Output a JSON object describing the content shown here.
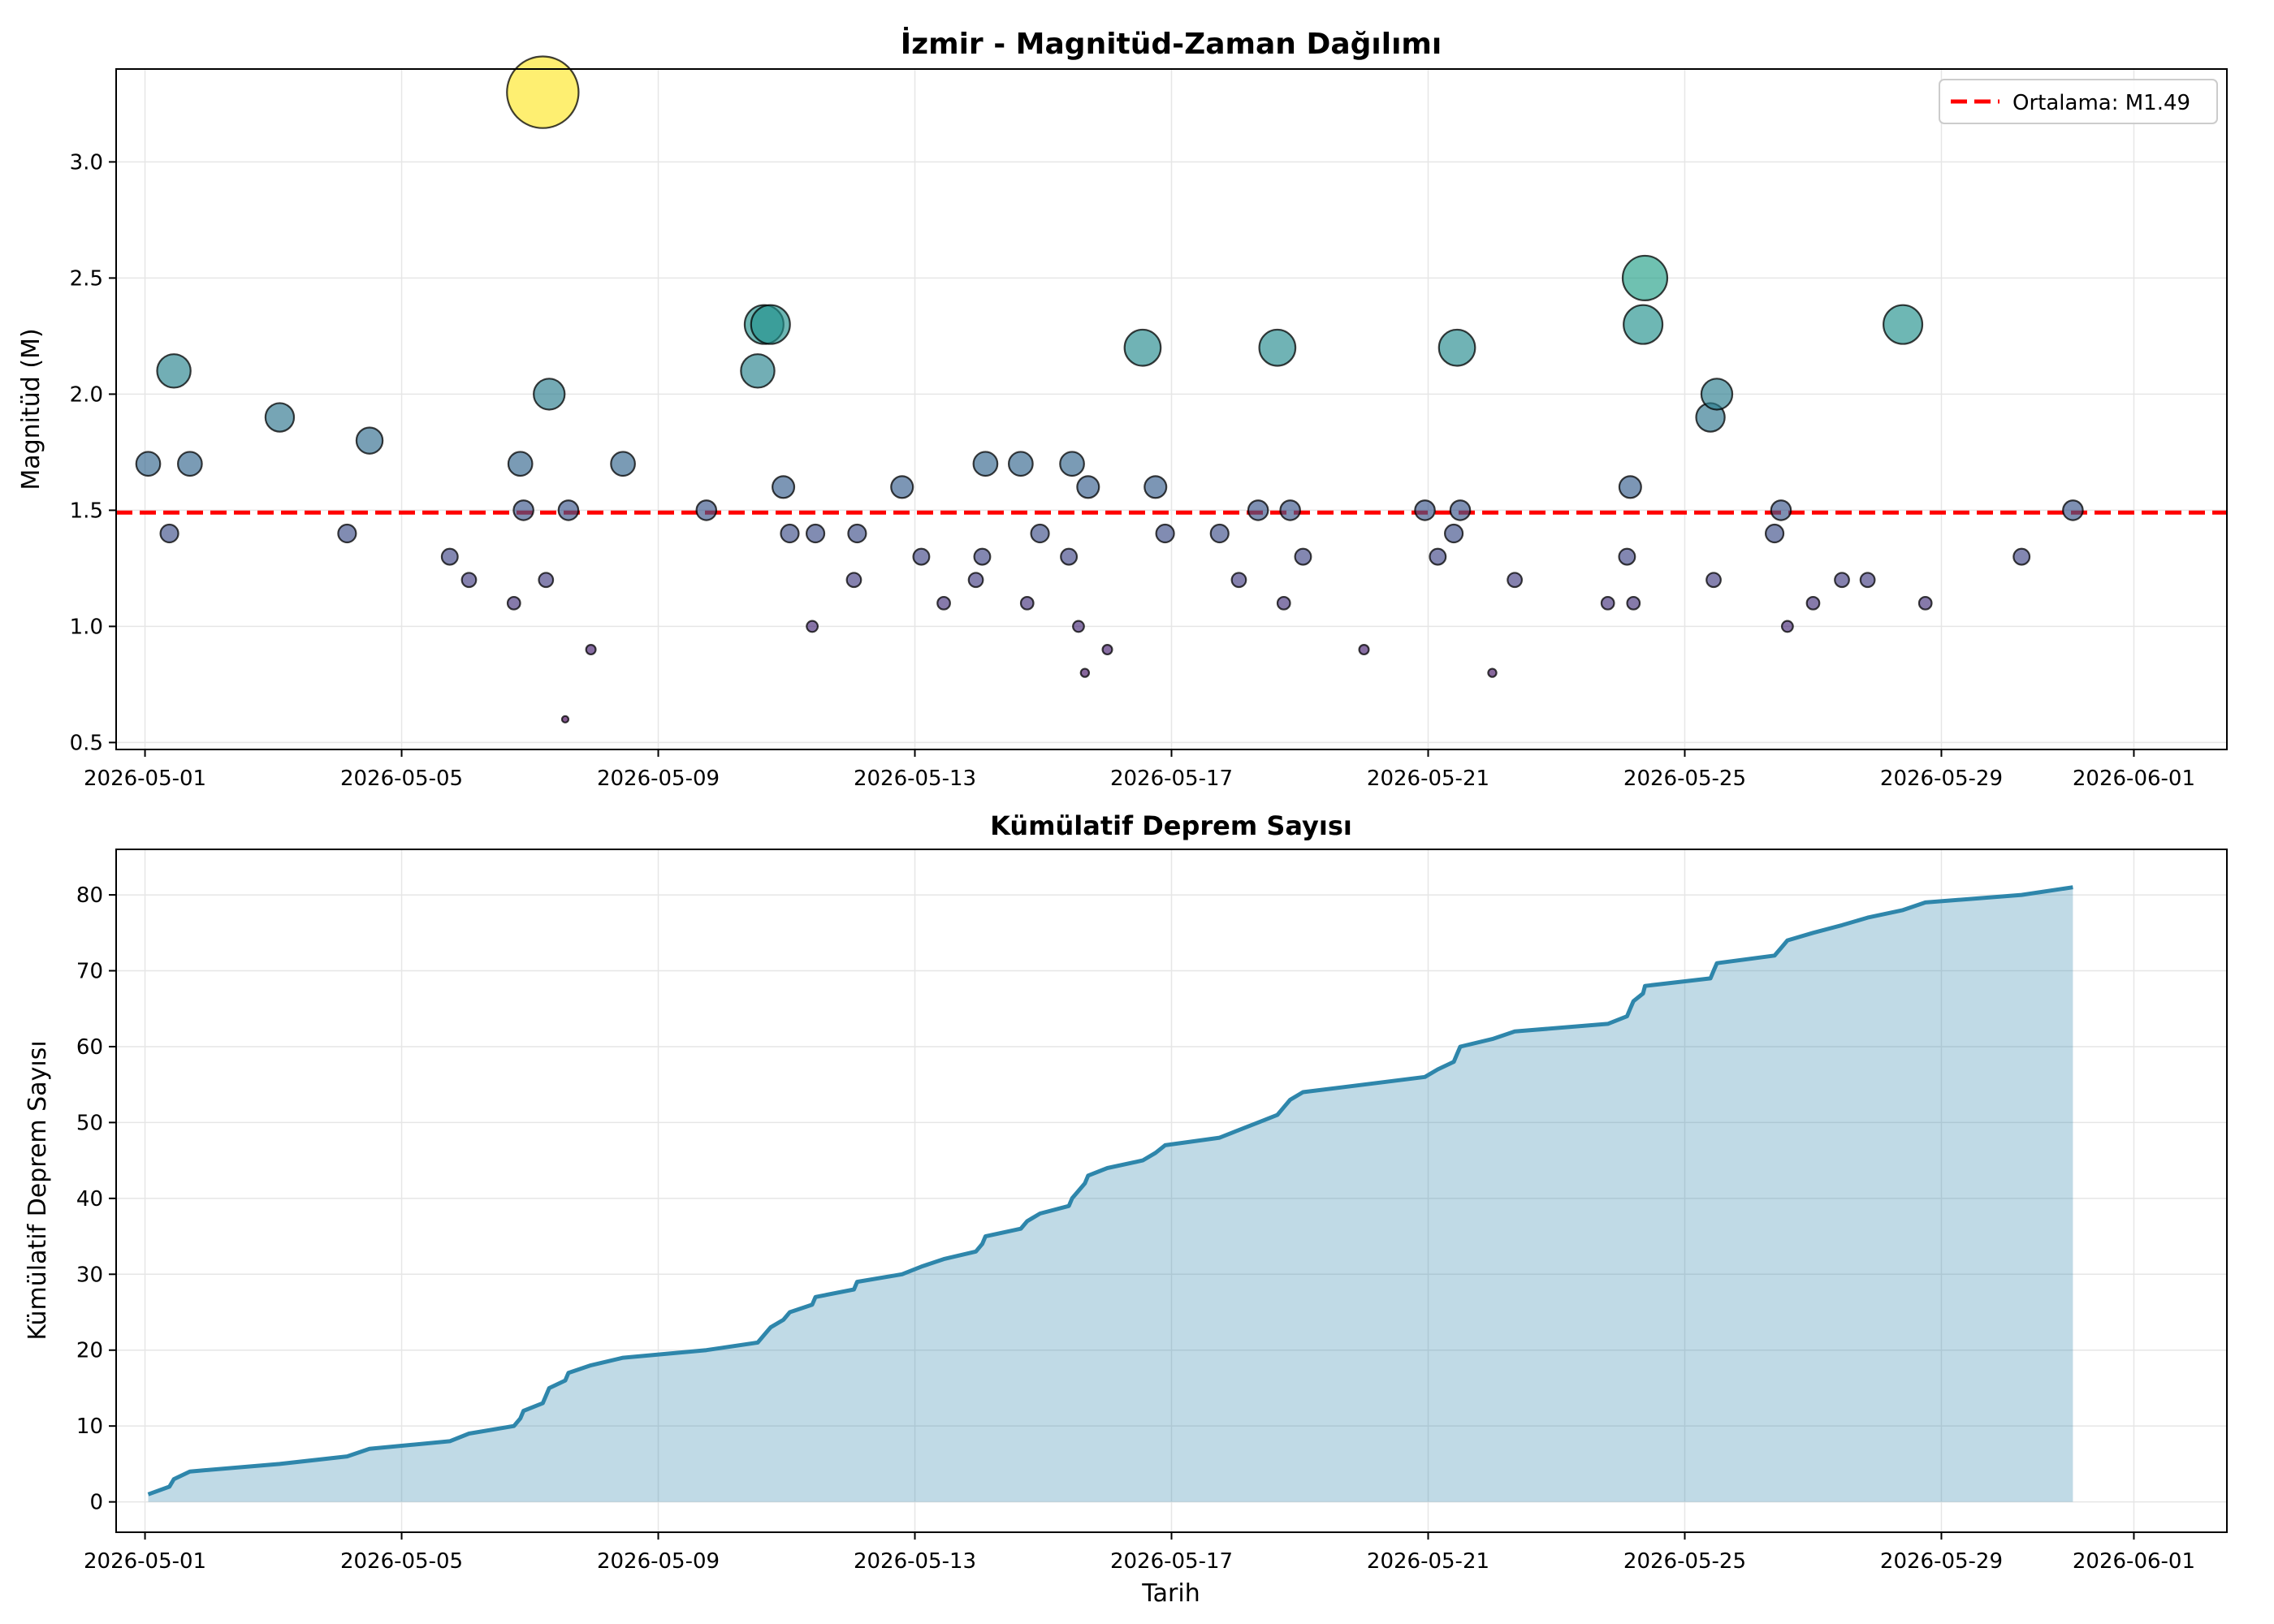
{
  "charts": {
    "top": {
      "title": "İzmir - Magnitüd-Zaman Dağılımı",
      "ylabel": "Magnitüd (M)",
      "legend_label": "Ortalama: M1.49"
    },
    "bottom": {
      "title": "Kümülatif Deprem Sayısı",
      "ylabel": "Kümülatif Deprem Sayısı",
      "xlabel": "Tarih"
    }
  },
  "chart_data": [
    {
      "type": "scatter",
      "title": "İzmir - Magnitüd-Zaman Dağılımı",
      "xlabel": "",
      "ylabel": "Magnitüd (M)",
      "x_axis": "date (day of May 2026; 32 = 2026-06-01)",
      "xlim": [
        -0.45,
        32.45
      ],
      "ylim": [
        0.47,
        3.4
      ],
      "yticks": [
        0.5,
        1.0,
        1.5,
        2.0,
        2.5,
        3.0
      ],
      "xticks": [
        "2026-05-01",
        "2026-05-05",
        "2026-05-09",
        "2026-05-13",
        "2026-05-17",
        "2026-05-21",
        "2026-05-25",
        "2026-05-29",
        "2026-06-01"
      ],
      "grid": true,
      "legend": "top-right",
      "reference_line": {
        "label": "Ortalama: M1.49",
        "value": 1.49,
        "color": "#ff0000",
        "style": "dashed"
      },
      "color_scale": "viridis (by magnitude)",
      "points": [
        [
          0.05,
          1.7
        ],
        [
          0.38,
          1.4
        ],
        [
          0.45,
          2.1
        ],
        [
          0.7,
          1.7
        ],
        [
          2.1,
          1.9
        ],
        [
          3.15,
          1.4
        ],
        [
          3.5,
          1.8
        ],
        [
          4.75,
          1.3
        ],
        [
          5.05,
          1.2
        ],
        [
          5.75,
          1.1
        ],
        [
          5.85,
          1.7
        ],
        [
          5.9,
          1.5
        ],
        [
          6.2,
          3.3
        ],
        [
          6.25,
          1.2
        ],
        [
          6.3,
          2.0
        ],
        [
          6.55,
          0.6
        ],
        [
          6.6,
          1.5
        ],
        [
          6.95,
          0.9
        ],
        [
          7.45,
          1.7
        ],
        [
          8.75,
          1.5
        ],
        [
          9.55,
          2.1
        ],
        [
          9.65,
          2.3
        ],
        [
          9.75,
          2.3
        ],
        [
          9.95,
          1.6
        ],
        [
          10.05,
          1.4
        ],
        [
          10.4,
          1.0
        ],
        [
          10.45,
          1.4
        ],
        [
          11.05,
          1.2
        ],
        [
          11.1,
          1.4
        ],
        [
          11.8,
          1.6
        ],
        [
          12.1,
          1.3
        ],
        [
          12.45,
          1.1
        ],
        [
          12.95,
          1.2
        ],
        [
          13.05,
          1.3
        ],
        [
          13.1,
          1.7
        ],
        [
          13.65,
          1.7
        ],
        [
          13.75,
          1.1
        ],
        [
          13.95,
          1.4
        ],
        [
          14.4,
          1.3
        ],
        [
          14.45,
          1.7
        ],
        [
          14.55,
          1.0
        ],
        [
          14.65,
          0.8
        ],
        [
          14.7,
          1.6
        ],
        [
          15.0,
          0.9
        ],
        [
          15.55,
          2.2
        ],
        [
          15.75,
          1.6
        ],
        [
          15.9,
          1.4
        ],
        [
          16.75,
          1.4
        ],
        [
          17.05,
          1.2
        ],
        [
          17.35,
          1.5
        ],
        [
          17.65,
          2.2
        ],
        [
          17.75,
          1.1
        ],
        [
          17.85,
          1.5
        ],
        [
          18.05,
          1.3
        ],
        [
          19.0,
          0.9
        ],
        [
          19.95,
          1.5
        ],
        [
          20.15,
          1.3
        ],
        [
          20.4,
          1.4
        ],
        [
          20.45,
          2.2
        ],
        [
          20.5,
          1.5
        ],
        [
          21.0,
          0.8
        ],
        [
          21.35,
          1.2
        ],
        [
          22.8,
          1.1
        ],
        [
          23.1,
          1.3
        ],
        [
          23.15,
          1.6
        ],
        [
          23.2,
          1.1
        ],
        [
          23.35,
          2.3
        ],
        [
          23.38,
          2.5
        ],
        [
          24.4,
          1.9
        ],
        [
          24.45,
          1.2
        ],
        [
          24.5,
          2.0
        ],
        [
          25.4,
          1.4
        ],
        [
          25.5,
          1.5
        ],
        [
          25.6,
          1.0
        ],
        [
          26.0,
          1.1
        ],
        [
          26.45,
          1.2
        ],
        [
          26.85,
          1.2
        ],
        [
          27.4,
          2.3
        ],
        [
          27.75,
          1.1
        ],
        [
          29.25,
          1.3
        ],
        [
          30.05,
          1.5
        ]
      ]
    },
    {
      "type": "area",
      "title": "Kümülatif Deprem Sayısı",
      "xlabel": "Tarih",
      "ylabel": "Kümülatif Deprem Sayısı",
      "x_axis": "date (day of May 2026; 32 = 2026-06-01)",
      "xlim": [
        -0.45,
        32.45
      ],
      "ylim": [
        -4,
        86
      ],
      "yticks": [
        0,
        10,
        20,
        30,
        40,
        50,
        60,
        70,
        80
      ],
      "xticks": [
        "2026-05-01",
        "2026-05-05",
        "2026-05-09",
        "2026-05-13",
        "2026-05-17",
        "2026-05-21",
        "2026-05-25",
        "2026-05-29",
        "2026-06-01"
      ],
      "grid": true,
      "color": "#2e86ab",
      "points": [
        [
          0.05,
          1
        ],
        [
          0.38,
          2
        ],
        [
          0.45,
          3
        ],
        [
          0.7,
          4
        ],
        [
          2.1,
          5
        ],
        [
          3.15,
          6
        ],
        [
          3.5,
          7
        ],
        [
          4.75,
          8
        ],
        [
          5.05,
          9
        ],
        [
          5.75,
          10
        ],
        [
          5.85,
          11
        ],
        [
          5.9,
          12
        ],
        [
          6.2,
          13
        ],
        [
          6.25,
          14
        ],
        [
          6.3,
          15
        ],
        [
          6.55,
          16
        ],
        [
          6.6,
          17
        ],
        [
          6.95,
          18
        ],
        [
          7.45,
          19
        ],
        [
          8.75,
          20
        ],
        [
          9.55,
          21
        ],
        [
          9.65,
          22
        ],
        [
          9.75,
          23
        ],
        [
          9.95,
          24
        ],
        [
          10.05,
          25
        ],
        [
          10.4,
          26
        ],
        [
          10.45,
          27
        ],
        [
          11.05,
          28
        ],
        [
          11.1,
          29
        ],
        [
          11.8,
          30
        ],
        [
          12.1,
          31
        ],
        [
          12.45,
          32
        ],
        [
          12.95,
          33
        ],
        [
          13.05,
          34
        ],
        [
          13.1,
          35
        ],
        [
          13.65,
          36
        ],
        [
          13.75,
          37
        ],
        [
          13.95,
          38
        ],
        [
          14.4,
          39
        ],
        [
          14.45,
          40
        ],
        [
          14.55,
          41
        ],
        [
          14.65,
          42
        ],
        [
          14.7,
          43
        ],
        [
          15.0,
          44
        ],
        [
          15.55,
          45
        ],
        [
          15.75,
          46
        ],
        [
          15.9,
          47
        ],
        [
          16.75,
          48
        ],
        [
          17.05,
          49
        ],
        [
          17.35,
          50
        ],
        [
          17.65,
          51
        ],
        [
          17.75,
          52
        ],
        [
          17.85,
          53
        ],
        [
          18.05,
          54
        ],
        [
          19.0,
          55
        ],
        [
          19.95,
          56
        ],
        [
          20.15,
          57
        ],
        [
          20.4,
          58
        ],
        [
          20.45,
          59
        ],
        [
          20.5,
          60
        ],
        [
          21.0,
          61
        ],
        [
          21.35,
          62
        ],
        [
          22.8,
          63
        ],
        [
          23.1,
          64
        ],
        [
          23.15,
          65
        ],
        [
          23.2,
          66
        ],
        [
          23.35,
          67
        ],
        [
          23.38,
          68
        ],
        [
          24.4,
          69
        ],
        [
          24.45,
          70
        ],
        [
          24.5,
          71
        ],
        [
          25.4,
          72
        ],
        [
          25.5,
          73
        ],
        [
          25.6,
          74
        ],
        [
          26.0,
          75
        ],
        [
          26.45,
          76
        ],
        [
          26.85,
          77
        ],
        [
          27.4,
          78
        ],
        [
          27.75,
          79
        ],
        [
          29.25,
          80
        ],
        [
          30.05,
          81
        ]
      ]
    }
  ]
}
